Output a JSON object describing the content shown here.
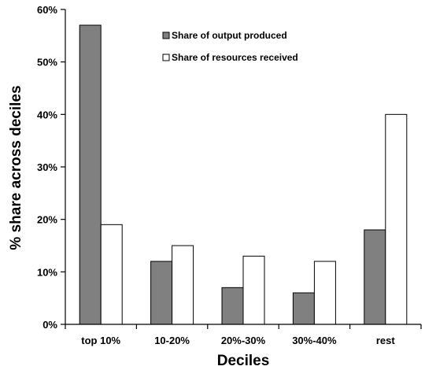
{
  "chart_data": {
    "type": "bar",
    "title": "",
    "xlabel": "Deciles",
    "ylabel": "% share across deciles",
    "categories": [
      "top 10%",
      "10-20%",
      "20%-30%",
      "30%-40%",
      "rest"
    ],
    "series": [
      {
        "name": "Share of output produced",
        "values": [
          57,
          12,
          7,
          6,
          18
        ],
        "color": "#808080"
      },
      {
        "name": "Share of resources received",
        "values": [
          19,
          15,
          13,
          12,
          40
        ],
        "color": "#ffffff"
      }
    ],
    "ylim": [
      0,
      60
    ],
    "yticks": [
      0,
      10,
      20,
      30,
      40,
      50,
      60
    ],
    "ytick_labels": [
      "0%",
      "10%",
      "20%",
      "30%",
      "40%",
      "50%",
      "60%"
    ],
    "grid": false,
    "legend_position": "top-center"
  }
}
